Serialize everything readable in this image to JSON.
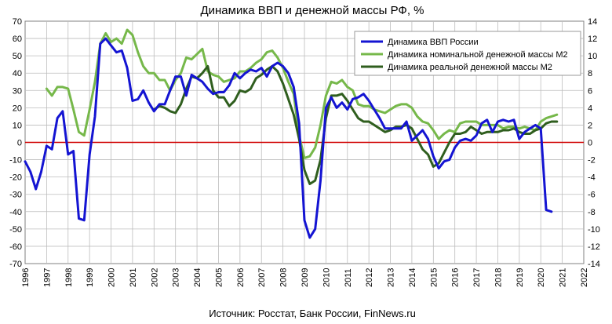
{
  "chart_data": {
    "type": "line",
    "title": "Динамика  ВВП и денежной массы РФ, %",
    "source": "Источник: Росстат, Банк России, FinNews.ru",
    "x_range": [
      1996,
      2022
    ],
    "x_ticks": [
      "1996",
      "1997",
      "1998",
      "1999",
      "2000",
      "2001",
      "2002",
      "2003",
      "2004",
      "2005",
      "2006",
      "2007",
      "2008",
      "2009",
      "2010",
      "2011",
      "2012",
      "2013",
      "2014",
      "2015",
      "2016",
      "2017",
      "2018",
      "2019",
      "2020",
      "2021",
      "2022"
    ],
    "y_left_range": [
      -70,
      70
    ],
    "y_left_ticks": [
      "70",
      "60",
      "50",
      "40",
      "30",
      "20",
      "10",
      "0",
      "-10",
      "-20",
      "-30",
      "-40",
      "-50",
      "-60",
      "-70"
    ],
    "y_right_range": [
      -14,
      14
    ],
    "y_right_ticks": [
      "14",
      "12",
      "10",
      "8",
      "6",
      "4",
      "2",
      "0",
      "-2",
      "-4",
      "-6",
      "-8",
      "-10",
      "-12",
      "-14"
    ],
    "grid": true,
    "zero_line_color": "#d00000",
    "legend_position": "top-right",
    "legend": [
      {
        "label": "Динамика ВВП России",
        "color": "#1414d2"
      },
      {
        "label": "Динамика номинальной денежной массы М2",
        "color": "#76b84a"
      },
      {
        "label": "Динамика реальной денежной массы М2",
        "color": "#2f5e1e"
      }
    ],
    "series": [
      {
        "name": "Динамика ВВП России",
        "color": "#1414d2",
        "axis": "right",
        "x": [
          1996.0,
          1996.25,
          1996.5,
          1996.75,
          1997.0,
          1997.25,
          1997.5,
          1997.75,
          1998.0,
          1998.25,
          1998.5,
          1998.75,
          1999.0,
          1999.25,
          1999.5,
          1999.75,
          2000.0,
          2000.25,
          2000.5,
          2000.75,
          2001.0,
          2001.25,
          2001.5,
          2001.75,
          2002.0,
          2002.25,
          2002.5,
          2002.75,
          2003.0,
          2003.25,
          2003.5,
          2003.75,
          2004.0,
          2004.25,
          2004.5,
          2004.75,
          2005.0,
          2005.25,
          2005.5,
          2005.75,
          2006.0,
          2006.25,
          2006.5,
          2006.75,
          2007.0,
          2007.25,
          2007.5,
          2007.75,
          2008.0,
          2008.25,
          2008.5,
          2008.75,
          2009.0,
          2009.25,
          2009.5,
          2009.75,
          2010.0,
          2010.25,
          2010.5,
          2010.75,
          2011.0,
          2011.25,
          2011.5,
          2011.75,
          2012.0,
          2012.25,
          2012.5,
          2012.75,
          2013.0,
          2013.25,
          2013.5,
          2013.75,
          2014.0,
          2014.25,
          2014.5,
          2014.75,
          2015.0,
          2015.25,
          2015.5,
          2015.75,
          2016.0,
          2016.25,
          2016.5,
          2016.75,
          2017.0,
          2017.25,
          2017.5,
          2017.75,
          2018.0,
          2018.25,
          2018.5,
          2018.75,
          2019.0,
          2019.25,
          2019.5,
          2019.75,
          2020.0,
          2020.25,
          2020.5
        ],
        "values": [
          -2.2,
          -3.4,
          -5.4,
          -3.4,
          -0.4,
          -0.8,
          2.8,
          3.6,
          -1.4,
          -1.0,
          -8.8,
          -9.0,
          -1.4,
          3.0,
          11.4,
          12.0,
          11.2,
          10.4,
          10.6,
          8.6,
          4.8,
          5.0,
          6.0,
          4.6,
          3.6,
          4.4,
          4.4,
          6.0,
          7.6,
          7.6,
          5.4,
          7.8,
          7.4,
          7.0,
          6.2,
          5.6,
          5.8,
          5.8,
          6.6,
          8.0,
          7.4,
          8.0,
          8.4,
          8.2,
          8.6,
          7.6,
          8.8,
          9.2,
          8.8,
          8.0,
          6.4,
          2.2,
          -9.0,
          -11.0,
          -10.0,
          -4.4,
          4.0,
          5.2,
          4.0,
          4.6,
          3.8,
          5.0,
          5.2,
          5.6,
          4.8,
          3.8,
          2.8,
          1.6,
          1.6,
          1.6,
          1.6,
          2.4,
          0.2,
          0.8,
          1.4,
          0.4,
          -1.6,
          -3.0,
          -2.2,
          -2.0,
          -0.6,
          0.2,
          0.4,
          0.2,
          0.8,
          2.2,
          2.6,
          1.2,
          2.4,
          2.6,
          2.4,
          2.6,
          0.4,
          1.2,
          1.6,
          2.0,
          1.6,
          -7.8,
          -8.0
        ]
      },
      {
        "name": "Динамика номинальной денежной массы М2",
        "color": "#76b84a",
        "axis": "left",
        "x": [
          1997.0,
          1997.25,
          1997.5,
          1997.75,
          1998.0,
          1998.25,
          1998.5,
          1998.75,
          1999.0,
          1999.25,
          1999.5,
          1999.75,
          2000.0,
          2000.25,
          2000.5,
          2000.75,
          2001.0,
          2001.25,
          2001.5,
          2001.75,
          2002.0,
          2002.25,
          2002.5,
          2002.75,
          2003.0,
          2003.25,
          2003.5,
          2003.75,
          2004.0,
          2004.25,
          2004.5,
          2004.75,
          2005.0,
          2005.25,
          2005.5,
          2005.75,
          2006.0,
          2006.25,
          2006.5,
          2006.75,
          2007.0,
          2007.25,
          2007.5,
          2007.75,
          2008.0,
          2008.25,
          2008.5,
          2008.75,
          2009.0,
          2009.25,
          2009.5,
          2009.75,
          2010.0,
          2010.25,
          2010.5,
          2010.75,
          2011.0,
          2011.25,
          2011.5,
          2011.75,
          2012.0,
          2012.25,
          2012.5,
          2012.75,
          2013.0,
          2013.25,
          2013.5,
          2013.75,
          2014.0,
          2014.25,
          2014.5,
          2014.75,
          2015.0,
          2015.25,
          2015.5,
          2015.75,
          2016.0,
          2016.25,
          2016.5,
          2016.75,
          2017.0,
          2017.25,
          2017.5,
          2017.75,
          2018.0,
          2018.25,
          2018.5,
          2018.75,
          2019.0,
          2019.25,
          2019.5,
          2019.75,
          2020.0,
          2020.25,
          2020.5,
          2020.75
        ],
        "values": [
          31,
          27,
          32,
          32,
          31,
          19,
          6,
          4,
          19,
          35,
          57,
          63,
          58,
          60,
          57,
          65,
          62,
          52,
          44,
          40,
          40,
          36,
          36,
          30,
          36,
          40,
          49,
          48,
          51,
          54,
          41,
          39,
          38,
          35,
          36,
          37,
          41,
          41,
          43,
          46,
          48,
          52,
          53,
          49,
          43,
          35,
          28,
          4,
          -9,
          -8,
          -3,
          10,
          27,
          35,
          34,
          36,
          32,
          30,
          22,
          21,
          21,
          19,
          18,
          17,
          19,
          21,
          22,
          22,
          20,
          15,
          12,
          11,
          7,
          2,
          5,
          7,
          6,
          11,
          12,
          12,
          12,
          10,
          10,
          10,
          10,
          8,
          9,
          9,
          8,
          9,
          8,
          7,
          12,
          14,
          15,
          16
        ]
      },
      {
        "name": "Динамика реальной денежной массы М2",
        "color": "#2f5e1e",
        "axis": "left",
        "x": [
          2002.0,
          2002.25,
          2002.5,
          2002.75,
          2003.0,
          2003.25,
          2003.5,
          2003.75,
          2004.0,
          2004.25,
          2004.5,
          2004.75,
          2005.0,
          2005.25,
          2005.5,
          2005.75,
          2006.0,
          2006.25,
          2006.5,
          2006.75,
          2007.0,
          2007.25,
          2007.5,
          2007.75,
          2008.0,
          2008.25,
          2008.5,
          2008.75,
          2009.0,
          2009.25,
          2009.5,
          2009.75,
          2010.0,
          2010.25,
          2010.5,
          2010.75,
          2011.0,
          2011.25,
          2011.5,
          2011.75,
          2012.0,
          2012.25,
          2012.5,
          2012.75,
          2013.0,
          2013.25,
          2013.5,
          2013.75,
          2014.0,
          2014.25,
          2014.5,
          2014.75,
          2015.0,
          2015.25,
          2015.5,
          2015.75,
          2016.0,
          2016.25,
          2016.5,
          2016.75,
          2017.0,
          2017.25,
          2017.5,
          2017.75,
          2018.0,
          2018.25,
          2018.5,
          2018.75,
          2019.0,
          2019.25,
          2019.5,
          2019.75,
          2020.0,
          2020.25,
          2020.5,
          2020.75
        ],
        "values": [
          19,
          21,
          20,
          18,
          17,
          22,
          31,
          38,
          37,
          40,
          44,
          30,
          26,
          26,
          21,
          24,
          30,
          29,
          31,
          37,
          39,
          42,
          44,
          41,
          34,
          25,
          16,
          2,
          -16,
          -24,
          -22,
          -10,
          14,
          27,
          27,
          28,
          24,
          19,
          14,
          12,
          12,
          10,
          8,
          6,
          7,
          9,
          9,
          10,
          8,
          2,
          -4,
          -7,
          -14,
          -12,
          -6,
          0,
          5,
          5,
          6,
          9,
          7,
          5,
          6,
          6,
          6,
          7,
          7,
          8,
          6,
          5,
          5,
          7,
          8,
          11,
          12,
          12
        ]
      }
    ]
  }
}
